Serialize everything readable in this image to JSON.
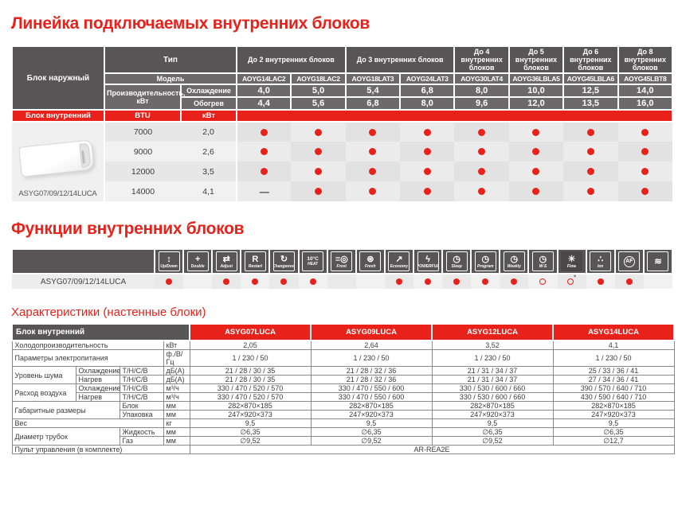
{
  "titles": {
    "lineup": "Линейка подключаемых внутренних блоков",
    "functions": "Функции внутренних блоков",
    "specs": "Характеристики (настенные блоки)"
  },
  "colors": {
    "accent_red": "#e8211b",
    "header_gray": "#575555",
    "header_gray_light": "#6b6969"
  },
  "lineup": {
    "outdoor_unit_label": "Блок наружный",
    "type_label": "Тип",
    "model_label": "Модель",
    "capacity_label": "Производительность, кВт",
    "cooling_label": "Охлаждение",
    "heating_label": "Обогрев",
    "indoor_unit_label": "Блок внутренний",
    "btu_label": "BTU",
    "kw_label": "кВт",
    "indoor_model_label": "ASYG07/09/12/14LUCA",
    "groups": [
      {
        "label": "До 2 внутренних блоков",
        "span": 2
      },
      {
        "label": "До 3 внутренних блоков",
        "span": 2
      },
      {
        "label": "До 4 внутренних блоков",
        "span": 1
      },
      {
        "label": "До 5 внутренних блоков",
        "span": 1
      },
      {
        "label": "До 6 внутренних блоков",
        "span": 1
      },
      {
        "label": "До 8 внутренних блоков",
        "span": 1
      }
    ],
    "models": [
      "AOYG14LAC2",
      "AOYG18LAC2",
      "AOYG18LAT3",
      "AOYG24LAT3",
      "AOYG30LAT4",
      "AOYG36LBLA5",
      "AOYG45LBLA6",
      "AOYG45LBT8"
    ],
    "cooling_kw": [
      "4,0",
      "5,0",
      "5,4",
      "6,8",
      "8,0",
      "10,0",
      "12,5",
      "14,0"
    ],
    "heating_kw": [
      "4,4",
      "5,6",
      "6,8",
      "8,0",
      "9,6",
      "12,0",
      "13,5",
      "16,0"
    ],
    "rows": [
      {
        "btu": "7000",
        "kw": "2,0",
        "compat": [
          "dot",
          "dot",
          "dot",
          "dot",
          "dot",
          "dot",
          "dot",
          "dot"
        ]
      },
      {
        "btu": "9000",
        "kw": "2,6",
        "compat": [
          "dot",
          "dot",
          "dot",
          "dot",
          "dot",
          "dot",
          "dot",
          "dot"
        ]
      },
      {
        "btu": "12000",
        "kw": "3,5",
        "compat": [
          "dot",
          "dot",
          "dot",
          "dot",
          "dot",
          "dot",
          "dot",
          "dot"
        ]
      },
      {
        "btu": "14000",
        "kw": "4,1",
        "compat": [
          "dash",
          "dot",
          "dot",
          "dot",
          "dot",
          "dot",
          "dot",
          "dot"
        ]
      }
    ]
  },
  "functions": {
    "row_label": "ASYG07/09/12/14LUCA",
    "items": [
      {
        "name": "up-down",
        "glyph": "↕",
        "label": "Up/Down",
        "avail": "dot"
      },
      {
        "name": "double-swing",
        "glyph": "+",
        "label": "Double",
        "avail": "none"
      },
      {
        "name": "adjust",
        "glyph": "⇄",
        "label": "Adjust",
        "avail": "dot"
      },
      {
        "name": "restart",
        "glyph": "R",
        "label": "Restart",
        "avail": "dot"
      },
      {
        "name": "auto-changeover",
        "glyph": "↻",
        "label": "Changeover",
        "avail": "dot"
      },
      {
        "name": "heat-10c",
        "glyph": "10°C",
        "label": "HEAT",
        "avail": "dot"
      },
      {
        "name": "frost",
        "glyph": "≡◎",
        "label": "Frost",
        "avail": "none"
      },
      {
        "name": "fresh-fan",
        "glyph": "⊛",
        "label": "Fresh",
        "avail": "none"
      },
      {
        "name": "economy",
        "glyph": "↗",
        "label": "Economy",
        "avail": "dot"
      },
      {
        "name": "powerful",
        "glyph": "ϟ",
        "label": "POWERFUL",
        "avail": "dot"
      },
      {
        "name": "sleep-timer",
        "glyph": "◷",
        "label": "Sleep",
        "avail": "dot"
      },
      {
        "name": "program-timer",
        "glyph": "◷",
        "label": "Program",
        "avail": "dot"
      },
      {
        "name": "weekly-timer",
        "glyph": "◷",
        "label": "Weekly",
        "avail": "dot"
      },
      {
        "name": "ws-timer",
        "glyph": "◷",
        "label": "W-S",
        "avail": "circle"
      },
      {
        "name": "flow",
        "glyph": "☀",
        "label": "Flow",
        "avail": "circle-star"
      },
      {
        "name": "ion",
        "glyph": "∴",
        "label": "Ion",
        "avail": "dot"
      },
      {
        "name": "af-filter",
        "glyph": "AF",
        "label": "",
        "avail": "dot"
      },
      {
        "name": "wave",
        "glyph": "≋",
        "label": "",
        "avail": "none"
      }
    ]
  },
  "specs": {
    "header_label": "Блок внутренний",
    "models": [
      "ASYG07LUCA",
      "ASYG09LUCA",
      "ASYG12LUCA",
      "ASYG14LUCA"
    ],
    "rows": [
      {
        "cells": [
          {
            "t": "Холодопроизводительность",
            "cs": 3
          },
          {
            "t": "кВт"
          }
        ],
        "values": [
          "2,05",
          "2,64",
          "3,52",
          "4,1"
        ]
      },
      {
        "cells": [
          {
            "t": "Параметры электропитания",
            "cs": 3
          },
          {
            "t": "ф./В/Гц"
          }
        ],
        "values": [
          "1 / 230 / 50",
          "1 / 230 / 50",
          "1 / 230 / 50",
          "1 / 230 / 50"
        ]
      },
      {
        "cells": [
          {
            "t": "Уровень шума",
            "rs": 2
          },
          {
            "t": "Охлаждение"
          },
          {
            "t": "Т/Н/С/В"
          },
          {
            "t": "дБ(А)"
          }
        ],
        "values": [
          "21 / 28 / 30 / 35",
          "21 / 28 / 32 / 36",
          "21 / 31 / 34 / 37",
          "25 / 33 / 36 / 41"
        ]
      },
      {
        "cells": [
          {
            "t": "Нагрев"
          },
          {
            "t": "Т/Н/С/В"
          },
          {
            "t": "дБ(А)"
          }
        ],
        "values": [
          "21 / 28 / 30 / 35",
          "21 / 28 / 32 / 36",
          "21 / 31 / 34 / 37",
          "27 / 34 / 36 / 41"
        ]
      },
      {
        "cells": [
          {
            "t": "Расход воздуха",
            "rs": 2
          },
          {
            "t": "Охлаждение"
          },
          {
            "t": "Т/Н/С/В"
          },
          {
            "t": "м³/ч"
          }
        ],
        "values": [
          "330 / 470 / 520 / 570",
          "330 / 470 / 550 / 600",
          "330 / 530 / 600 / 660",
          "390 / 570 / 640 / 710"
        ]
      },
      {
        "cells": [
          {
            "t": "Нагрев"
          },
          {
            "t": "Т/Н/С/В"
          },
          {
            "t": "м³/ч"
          }
        ],
        "values": [
          "330 / 470 / 520 / 570",
          "330 / 470 / 550 / 600",
          "330 / 530 / 600 / 660",
          "430 / 590 / 640 / 710"
        ]
      },
      {
        "cells": [
          {
            "t": "Габаритные размеры",
            "rs": 2,
            "cs": 2
          },
          {
            "t": "Блок"
          },
          {
            "t": "мм"
          }
        ],
        "values": [
          "282×870×185",
          "282×870×185",
          "282×870×185",
          "282×870×185"
        ]
      },
      {
        "cells": [
          {
            "t": "Упаковка"
          },
          {
            "t": "мм"
          }
        ],
        "values": [
          "247×920×373",
          "247×920×373",
          "247×920×373",
          "247×920×373"
        ]
      },
      {
        "cells": [
          {
            "t": "Вес",
            "cs": 3
          },
          {
            "t": "кг"
          }
        ],
        "values": [
          "9,5",
          "9,5",
          "9,5",
          "9,5"
        ]
      },
      {
        "cells": [
          {
            "t": "Диаметр трубок",
            "rs": 2,
            "cs": 2
          },
          {
            "t": "Жидкость"
          },
          {
            "t": "мм"
          }
        ],
        "values": [
          "∅6,35",
          "∅6,35",
          "∅6,35",
          "∅6,35"
        ]
      },
      {
        "cells": [
          {
            "t": "Газ"
          },
          {
            "t": "мм"
          }
        ],
        "values": [
          "∅9,52",
          "∅9,52",
          "∅9,52",
          "∅12,7"
        ]
      },
      {
        "cells": [
          {
            "t": "Пульт управления (в комплекте)",
            "cs": 4
          }
        ],
        "span_value": "AR-REA2E"
      }
    ]
  }
}
